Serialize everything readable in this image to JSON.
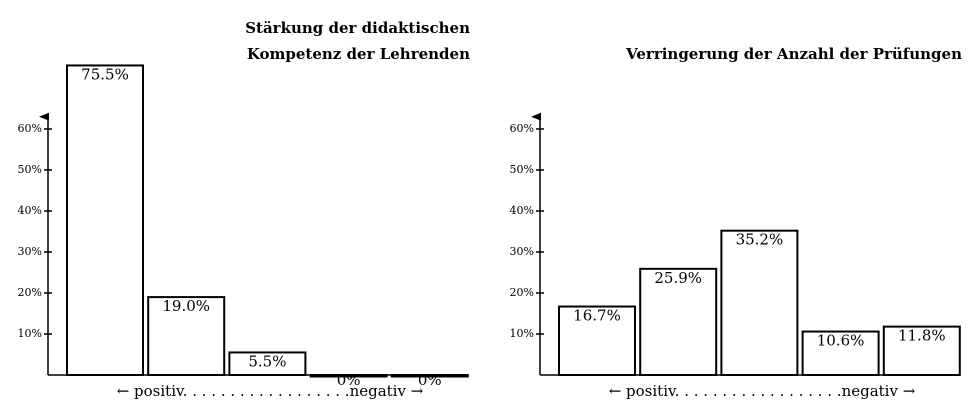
{
  "chart_data": [
    {
      "type": "bar",
      "title": [
        "Stärkung der didaktischen",
        "Kompetenz der Lehrenden"
      ],
      "x_label": "← positiv. . . . . . . . . . . . . . . . . .negativ →",
      "categories": [
        null,
        null,
        null,
        null,
        null
      ],
      "values": [
        75.5,
        19.0,
        5.5,
        0,
        0
      ],
      "value_labels": [
        "75.5%",
        "19.0%",
        "5.5%",
        "0%",
        "0%"
      ],
      "color": "#ffffff",
      "ylim": [
        0,
        63
      ],
      "yticks": [
        {
          "value": 10,
          "label": "10%"
        },
        {
          "value": 20,
          "label": "20%"
        },
        {
          "value": 30,
          "label": "30%"
        },
        {
          "value": 40,
          "label": "40%"
        },
        {
          "value": 50,
          "label": "50%"
        },
        {
          "value": 60,
          "label": "60%"
        }
      ]
    },
    {
      "type": "bar",
      "title": [
        "Verringerung der Anzahl der Prüfungen"
      ],
      "x_label": "← positiv. . . . . . . . . . . . . . . . . .negativ →",
      "categories": [
        null,
        null,
        null,
        null,
        null
      ],
      "values": [
        16.7,
        25.9,
        35.2,
        10.6,
        11.8
      ],
      "value_labels": [
        "16.7%",
        "25.9%",
        "35.2%",
        "10.6%",
        "11.8%"
      ],
      "color": "#ffffff",
      "ylim": [
        0,
        63
      ],
      "yticks": [
        {
          "value": 10,
          "label": "10%"
        },
        {
          "value": 20,
          "label": "20%"
        },
        {
          "value": 30,
          "label": "30%"
        },
        {
          "value": 40,
          "label": "40%"
        },
        {
          "value": 50,
          "label": "50%"
        },
        {
          "value": 60,
          "label": "60%"
        }
      ]
    }
  ]
}
